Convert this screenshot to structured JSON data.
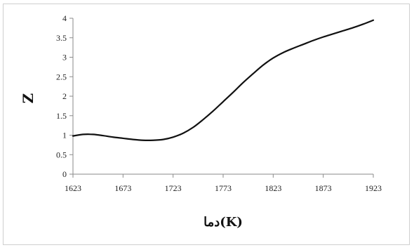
{
  "chart_data": {
    "type": "line",
    "title": "",
    "xlabel": "دما(K)",
    "ylabel": "Z",
    "xlim": [
      1623,
      1923
    ],
    "ylim": [
      0,
      4
    ],
    "xticks": [
      1623,
      1673,
      1723,
      1773,
      1823,
      1873,
      1923
    ],
    "yticks": [
      0,
      0.5,
      1,
      1.5,
      2,
      2.5,
      3,
      3.5,
      4
    ],
    "ytick_labels": [
      "0",
      "0.5",
      "1",
      "1.5",
      "2",
      "2.5",
      "3",
      "3.5",
      "4"
    ],
    "grid": false,
    "legend": "none",
    "series": [
      {
        "color": "#111111",
        "x": [
          1623,
          1633,
          1643,
          1653,
          1663,
          1673,
          1683,
          1693,
          1703,
          1713,
          1723,
          1733,
          1743,
          1753,
          1763,
          1773,
          1783,
          1793,
          1803,
          1813,
          1823,
          1833,
          1843,
          1853,
          1863,
          1873,
          1883,
          1893,
          1903,
          1913,
          1923
        ],
        "y": [
          0.98,
          1.02,
          1.02,
          0.99,
          0.95,
          0.92,
          0.89,
          0.87,
          0.87,
          0.89,
          0.95,
          1.05,
          1.2,
          1.4,
          1.62,
          1.86,
          2.1,
          2.35,
          2.58,
          2.8,
          2.98,
          3.12,
          3.23,
          3.33,
          3.43,
          3.52,
          3.6,
          3.68,
          3.76,
          3.85,
          3.95
        ]
      }
    ]
  }
}
